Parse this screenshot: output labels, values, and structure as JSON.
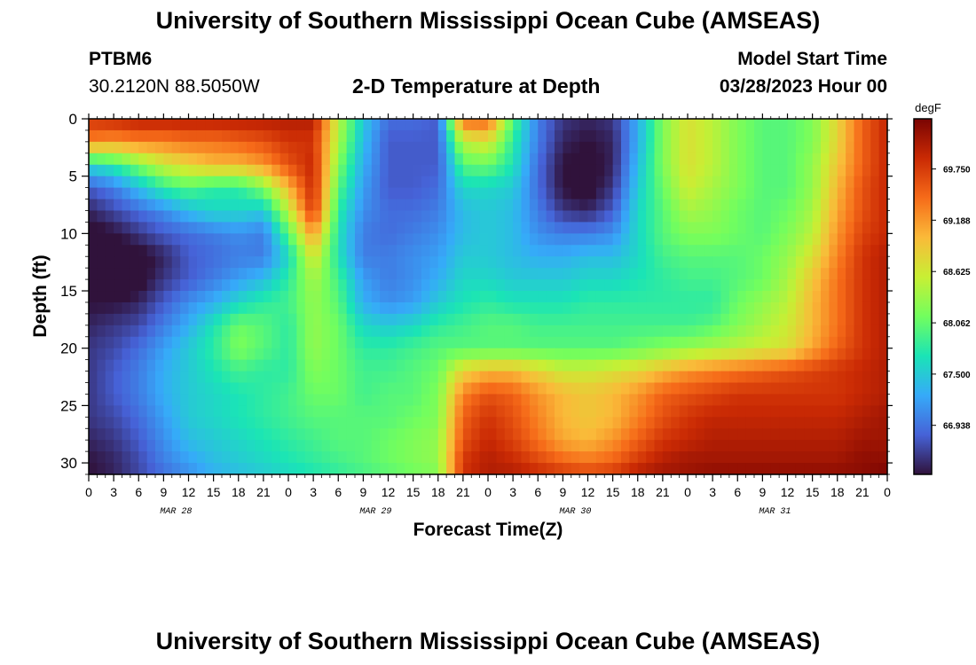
{
  "page": {
    "title": "University of Southern Mississippi Ocean Cube (AMSEAS)",
    "title_repeat": "University of Southern Mississippi Ocean Cube (AMSEAS)",
    "station_id": "PTBM6",
    "coordinates": "30.2120N  88.5050W",
    "subtitle": "2-D Temperature at Depth",
    "model_start_label": "Model Start Time",
    "model_start_value": "03/28/2023 Hour 00"
  },
  "chart_data": {
    "type": "heatmap",
    "title": "2-D Temperature at Depth",
    "xlabel": "Forecast Time(Z)",
    "ylabel": "Depth (ft)",
    "x_hours": [
      0,
      96
    ],
    "x_ticks": [
      "0",
      "3",
      "6",
      "9",
      "12",
      "15",
      "18",
      "21",
      "0",
      "3",
      "6",
      "9",
      "12",
      "15",
      "18",
      "21",
      "0",
      "3",
      "6",
      "9",
      "12",
      "15",
      "18",
      "21",
      "0",
      "3",
      "6",
      "9",
      "12",
      "15",
      "18",
      "21",
      "0"
    ],
    "date_labels": [
      {
        "label": "MAR 28",
        "hour": 10.5
      },
      {
        "label": "MAR 29",
        "hour": 34.5
      },
      {
        "label": "MAR 30",
        "hour": 58.5
      },
      {
        "label": "MAR 31",
        "hour": 82.5
      }
    ],
    "y_ticks": [
      0,
      5,
      10,
      15,
      20,
      25,
      30
    ],
    "y_range": [
      0,
      31
    ],
    "y_inverted": true,
    "colorbar": {
      "unit": "degF",
      "ticks": [
        "69.750",
        "69.188",
        "68.625",
        "68.062",
        "67.500",
        "66.938"
      ],
      "range": [
        66.4,
        70.3
      ]
    },
    "grid": false,
    "temperature_grid": {
      "depths_ft": [
        0,
        2,
        4,
        6,
        8,
        10,
        12,
        14,
        16,
        18,
        20,
        22,
        24,
        26,
        28,
        30,
        31
      ],
      "hours": [
        0,
        3,
        6,
        9,
        12,
        15,
        18,
        21,
        24,
        27,
        30,
        33,
        36,
        39,
        42,
        45,
        48,
        51,
        54,
        57,
        60,
        63,
        66,
        69,
        72,
        75,
        78,
        81,
        84,
        87,
        90,
        93,
        96
      ],
      "values_degF": [
        [
          69.8,
          69.9,
          70.0,
          70.0,
          70.0,
          70.0,
          70.0,
          70.0,
          70.0,
          70.0,
          68.5,
          67.5,
          66.9,
          66.9,
          66.8,
          69.5,
          69.5,
          68.0,
          67.0,
          66.6,
          66.5,
          66.6,
          67.3,
          68.2,
          68.7,
          68.5,
          68.2,
          68.0,
          68.0,
          68.2,
          68.8,
          69.5,
          69.9
        ],
        [
          69.3,
          69.2,
          69.3,
          69.3,
          69.4,
          69.4,
          69.5,
          69.6,
          69.8,
          69.8,
          68.4,
          67.4,
          66.8,
          66.8,
          66.8,
          68.5,
          68.7,
          67.8,
          67.0,
          66.5,
          66.4,
          66.5,
          67.3,
          68.2,
          68.7,
          68.5,
          68.2,
          68.0,
          68.0,
          68.2,
          68.8,
          69.5,
          69.9
        ],
        [
          67.6,
          67.8,
          68.2,
          68.6,
          68.8,
          69.0,
          69.0,
          69.2,
          69.6,
          69.9,
          68.2,
          67.3,
          66.8,
          66.8,
          66.8,
          68.0,
          68.1,
          67.7,
          66.9,
          66.4,
          66.3,
          66.5,
          67.4,
          68.2,
          68.7,
          68.5,
          68.2,
          68.0,
          68.0,
          68.3,
          68.9,
          69.5,
          69.9
        ],
        [
          66.8,
          67.0,
          67.4,
          67.8,
          68.0,
          67.8,
          67.8,
          68.2,
          69.0,
          69.9,
          68.0,
          67.2,
          66.8,
          66.8,
          66.9,
          67.6,
          67.6,
          67.5,
          66.9,
          66.4,
          66.3,
          66.6,
          67.5,
          68.1,
          68.6,
          68.4,
          68.2,
          68.0,
          68.0,
          68.3,
          69.0,
          69.6,
          69.9
        ],
        [
          66.5,
          66.7,
          66.9,
          67.1,
          67.4,
          67.6,
          67.6,
          67.5,
          68.5,
          69.8,
          67.8,
          67.1,
          66.9,
          66.9,
          67.0,
          67.4,
          67.5,
          67.4,
          67.0,
          66.6,
          66.5,
          66.8,
          67.6,
          68.0,
          68.4,
          68.3,
          68.1,
          68.0,
          68.1,
          68.4,
          69.1,
          69.6,
          69.9
        ],
        [
          66.3,
          66.4,
          66.6,
          66.8,
          66.9,
          67.0,
          67.1,
          67.0,
          68.0,
          69.2,
          67.7,
          67.0,
          66.9,
          67.0,
          67.1,
          67.4,
          67.5,
          67.4,
          67.1,
          67.0,
          67.0,
          67.1,
          67.6,
          68.0,
          68.2,
          68.2,
          68.1,
          68.0,
          68.2,
          68.5,
          69.2,
          69.7,
          69.9
        ],
        [
          66.3,
          66.2,
          66.3,
          66.5,
          66.8,
          66.9,
          67.0,
          67.0,
          67.6,
          68.7,
          67.7,
          67.0,
          67.0,
          67.1,
          67.2,
          67.5,
          67.5,
          67.4,
          67.3,
          67.3,
          67.4,
          67.4,
          67.6,
          67.9,
          68.0,
          68.0,
          68.0,
          68.1,
          68.3,
          68.7,
          69.3,
          69.8,
          70.0
        ],
        [
          66.3,
          66.2,
          66.3,
          66.6,
          66.8,
          67.0,
          67.2,
          67.4,
          67.8,
          68.4,
          67.9,
          67.2,
          67.0,
          67.1,
          67.3,
          67.6,
          67.6,
          67.5,
          67.5,
          67.5,
          67.6,
          67.6,
          67.7,
          67.8,
          67.9,
          67.9,
          68.0,
          68.1,
          68.4,
          68.9,
          69.4,
          69.8,
          70.0
        ],
        [
          66.4,
          66.4,
          66.5,
          66.8,
          67.1,
          67.3,
          67.6,
          67.8,
          67.9,
          68.3,
          68.0,
          67.3,
          67.1,
          67.2,
          67.5,
          67.7,
          67.8,
          67.7,
          67.7,
          67.7,
          67.8,
          67.8,
          67.8,
          67.8,
          67.8,
          67.8,
          68.1,
          68.3,
          68.5,
          69.0,
          69.4,
          69.8,
          70.0
        ],
        [
          66.5,
          66.6,
          66.7,
          67.0,
          67.3,
          67.7,
          68.1,
          68.0,
          67.8,
          68.3,
          68.1,
          67.6,
          67.5,
          67.6,
          67.8,
          67.9,
          68.0,
          68.0,
          67.9,
          67.9,
          67.9,
          67.9,
          67.9,
          67.9,
          67.9,
          68.0,
          68.2,
          68.4,
          68.6,
          69.0,
          69.4,
          69.8,
          70.0
        ],
        [
          66.6,
          66.7,
          66.9,
          67.2,
          67.5,
          67.8,
          68.2,
          68.0,
          67.8,
          68.3,
          68.1,
          67.8,
          67.8,
          67.9,
          68.0,
          68.0,
          68.0,
          68.0,
          68.0,
          68.0,
          68.0,
          68.0,
          68.1,
          68.2,
          68.3,
          68.4,
          68.5,
          68.6,
          68.7,
          69.1,
          69.5,
          69.8,
          70.0
        ],
        [
          66.6,
          66.8,
          67.0,
          67.3,
          67.5,
          67.7,
          67.9,
          67.8,
          67.8,
          68.2,
          68.1,
          67.9,
          67.9,
          68.0,
          68.1,
          68.8,
          69.0,
          69.0,
          68.8,
          68.6,
          68.6,
          68.7,
          68.8,
          69.0,
          69.2,
          69.3,
          69.4,
          69.5,
          69.6,
          69.7,
          69.8,
          69.9,
          70.0
        ],
        [
          66.6,
          66.8,
          67.0,
          67.3,
          67.5,
          67.6,
          67.7,
          67.8,
          67.9,
          68.1,
          68.1,
          67.9,
          68.0,
          68.0,
          68.2,
          69.3,
          69.6,
          69.5,
          69.2,
          69.0,
          68.9,
          69.0,
          69.2,
          69.5,
          69.6,
          69.7,
          69.8,
          69.8,
          69.8,
          69.8,
          69.8,
          69.9,
          70.0
        ],
        [
          66.6,
          66.7,
          66.9,
          67.2,
          67.5,
          67.6,
          67.7,
          67.8,
          67.9,
          68.0,
          68.0,
          68.0,
          68.0,
          68.1,
          68.2,
          69.5,
          69.8,
          69.6,
          69.3,
          69.0,
          68.9,
          69.0,
          69.3,
          69.6,
          69.8,
          69.9,
          69.9,
          69.9,
          69.9,
          69.9,
          69.9,
          70.0,
          70.1
        ],
        [
          66.5,
          66.6,
          66.8,
          67.1,
          67.4,
          67.5,
          67.6,
          67.7,
          67.8,
          67.9,
          68.0,
          68.0,
          68.1,
          68.2,
          68.3,
          69.6,
          69.9,
          69.7,
          69.4,
          69.1,
          69.0,
          69.2,
          69.5,
          69.8,
          69.9,
          70.0,
          70.0,
          70.0,
          70.0,
          70.0,
          70.0,
          70.1,
          70.1
        ],
        [
          66.4,
          66.5,
          66.7,
          67.0,
          67.2,
          67.4,
          67.5,
          67.6,
          67.7,
          67.8,
          67.9,
          68.0,
          68.1,
          68.2,
          68.3,
          69.8,
          70.0,
          69.9,
          69.7,
          69.5,
          69.4,
          69.5,
          69.8,
          70.0,
          70.1,
          70.1,
          70.1,
          70.1,
          70.1,
          70.1,
          70.1,
          70.2,
          70.2
        ],
        [
          66.4,
          66.5,
          66.7,
          66.9,
          67.1,
          67.3,
          67.4,
          67.5,
          67.6,
          67.7,
          67.8,
          67.9,
          68.0,
          68.1,
          68.2,
          69.8,
          70.0,
          70.0,
          69.9,
          69.8,
          69.7,
          69.8,
          70.0,
          70.1,
          70.1,
          70.2,
          70.2,
          70.2,
          70.2,
          70.2,
          70.2,
          70.2,
          70.3
        ]
      ]
    }
  },
  "colors": {
    "colormap": [
      "#30123b",
      "#4662d7",
      "#36aaf9",
      "#1ae4b6",
      "#72fe5e",
      "#c8ef34",
      "#faba39",
      "#f66b19",
      "#ca2a04",
      "#7a0403"
    ]
  }
}
